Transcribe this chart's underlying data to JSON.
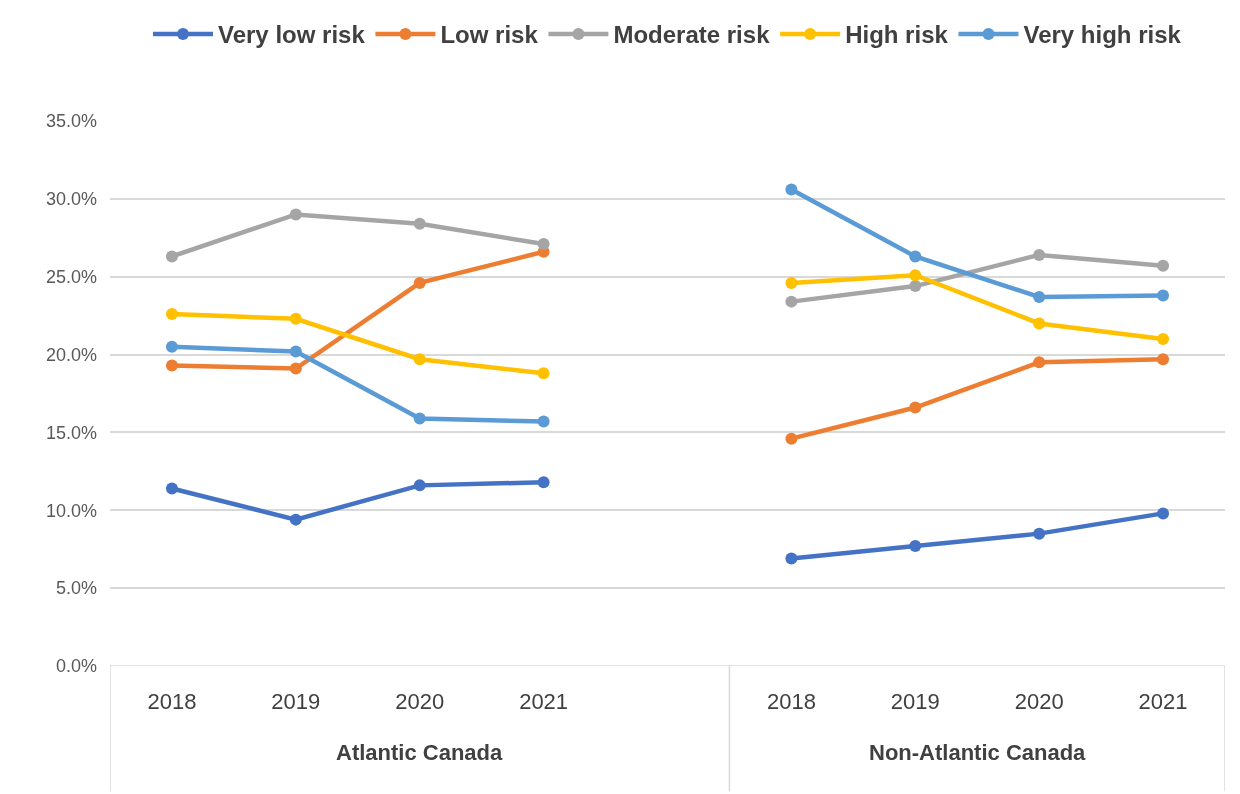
{
  "chart_data": {
    "type": "line",
    "categories": [
      "2018",
      "2019",
      "2020",
      "2021",
      null,
      "2018",
      "2019",
      "2020",
      "2021"
    ],
    "series": [
      {
        "name": "Very low risk",
        "color": "#4472c4",
        "values": [
          11.4,
          9.4,
          11.6,
          11.8,
          null,
          6.9,
          7.7,
          8.5,
          9.8
        ]
      },
      {
        "name": "Low risk",
        "color": "#ed7d31",
        "values": [
          19.3,
          19.1,
          24.6,
          26.6,
          null,
          14.6,
          16.6,
          19.5,
          19.7
        ]
      },
      {
        "name": "Moderate risk",
        "color": "#a5a5a5",
        "values": [
          26.3,
          29.0,
          28.4,
          27.1,
          null,
          23.4,
          24.4,
          26.4,
          25.7
        ]
      },
      {
        "name": "High risk",
        "color": "#ffc000",
        "values": [
          22.6,
          22.3,
          19.7,
          18.8,
          null,
          24.6,
          25.1,
          22.0,
          21.0
        ]
      },
      {
        "name": "Very high risk",
        "color": "#5b9bd5",
        "values": [
          20.5,
          20.2,
          15.9,
          15.7,
          null,
          30.6,
          26.3,
          23.7,
          23.8
        ]
      }
    ],
    "annotations": [
      "Atlantic Canada",
      "Non-Atlantic Canada"
    ],
    "ylim": [
      0,
      35
    ],
    "yticks": [
      {
        "value": 0,
        "label": "0.0%"
      },
      {
        "value": 5,
        "label": "5.0%"
      },
      {
        "value": 10,
        "label": "10.0%"
      },
      {
        "value": 15,
        "label": "15.0%"
      },
      {
        "value": 20,
        "label": "20.0%"
      },
      {
        "value": 25,
        "label": "25.0%"
      },
      {
        "value": 30,
        "label": "30.0%"
      },
      {
        "value": 35,
        "label": "35.0%"
      }
    ],
    "grid": "y",
    "legend": "top",
    "marker": "circle",
    "line_style": "solid"
  }
}
